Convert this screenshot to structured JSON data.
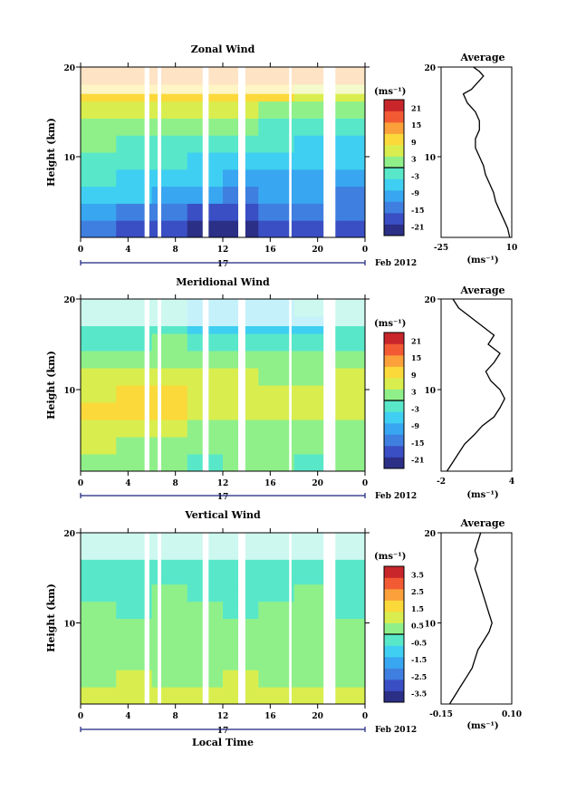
{
  "figure": {
    "xlabel": "Local Time",
    "date_label": "17",
    "month_label": "Feb 2012"
  },
  "chart_data": [
    {
      "type": "heatmap",
      "title": "Zonal Wind",
      "ylabel": "Height (km)",
      "xlim": [
        0,
        24
      ],
      "ylim": [
        1,
        20
      ],
      "xticks": [
        "0",
        "4",
        "8",
        "12",
        "16",
        "20",
        "0"
      ],
      "yticks": [
        "20",
        "10"
      ],
      "colorbar": {
        "unit": "(ms⁻¹)",
        "min": -24,
        "max": 24,
        "ticks": [
          "21",
          "15",
          "9",
          "3",
          "-3",
          "-9",
          "-15",
          "-21"
        ]
      },
      "average": {
        "title": "Average",
        "xlabel": "(ms⁻¹)",
        "xticks": [
          "-25",
          "10"
        ],
        "xlim": [
          -25,
          10
        ],
        "yticks": [
          "20",
          "10"
        ],
        "profile": [
          [
            1,
            9
          ],
          [
            2,
            8
          ],
          [
            3,
            6
          ],
          [
            4,
            4
          ],
          [
            5,
            2
          ],
          [
            6,
            1
          ],
          [
            7,
            -1
          ],
          [
            8,
            -3
          ],
          [
            9,
            -4
          ],
          [
            10,
            -6
          ],
          [
            11,
            -8
          ],
          [
            12,
            -8
          ],
          [
            13,
            -6
          ],
          [
            14,
            -6
          ],
          [
            15,
            -8
          ],
          [
            16,
            -12
          ],
          [
            17,
            -14
          ],
          [
            17.5,
            -10
          ],
          [
            18,
            -8
          ],
          [
            19,
            -4
          ],
          [
            19.5,
            -6
          ],
          [
            20,
            -9
          ]
        ]
      },
      "data_gaps": [
        [
          5.4,
          5.8
        ],
        [
          6.5,
          6.8
        ],
        [
          10.3,
          10.8
        ],
        [
          13.3,
          13.9
        ],
        [
          17.6,
          17.8
        ],
        [
          20.5,
          21.5
        ]
      ],
      "grid": [
        [
          -16,
          -18,
          -20,
          -22,
          -21,
          -19,
          -17,
          -18
        ],
        [
          -12,
          -14,
          -16,
          -18,
          -18,
          -16,
          -15,
          -16
        ],
        [
          -6,
          -8,
          -10,
          -12,
          -13,
          -12,
          -12,
          -13
        ],
        [
          -4,
          -6,
          -7,
          -8,
          -9,
          -9,
          -10,
          -11
        ],
        [
          -2,
          -3,
          -4,
          -5,
          -6,
          -7,
          -7,
          -8
        ],
        [
          0,
          -1,
          -2,
          -3,
          -3,
          -4,
          -5,
          -5
        ],
        [
          3,
          2,
          1,
          0,
          0,
          -1,
          -2,
          -2
        ],
        [
          7,
          6,
          5,
          5,
          4,
          3,
          2,
          2
        ],
        [
          11,
          10,
          10,
          9,
          9,
          8,
          7,
          7
        ],
        [
          13,
          12,
          13,
          14,
          15,
          14,
          13,
          13
        ]
      ]
    },
    {
      "type": "heatmap",
      "title": "Meridional Wind",
      "ylabel": "Height (km)",
      "xlim": [
        0,
        24
      ],
      "ylim": [
        1,
        20
      ],
      "xticks": [
        "0",
        "4",
        "8",
        "12",
        "16",
        "20",
        "0"
      ],
      "yticks": [
        "20",
        "10"
      ],
      "colorbar": {
        "unit": "(ms⁻¹)",
        "min": -24,
        "max": 24,
        "ticks": [
          "21",
          "15",
          "9",
          "3",
          "-3",
          "-9",
          "-15",
          "-21"
        ]
      },
      "average": {
        "title": "Average",
        "xlabel": "(ms⁻¹)",
        "xticks": [
          "-2",
          "4"
        ],
        "xlim": [
          -2,
          4
        ],
        "yticks": [
          "20",
          "10"
        ],
        "profile": [
          [
            1,
            -1.5
          ],
          [
            2,
            -1
          ],
          [
            3,
            -0.5
          ],
          [
            4,
            0
          ],
          [
            5,
            0.8
          ],
          [
            6,
            1.5
          ],
          [
            7,
            2.5
          ],
          [
            8,
            3
          ],
          [
            9,
            3.4
          ],
          [
            10,
            3
          ],
          [
            11,
            2.2
          ],
          [
            12,
            1.8
          ],
          [
            13,
            2.5
          ],
          [
            14,
            3
          ],
          [
            15,
            2
          ],
          [
            16,
            2.5
          ],
          [
            17,
            1.5
          ],
          [
            18,
            0.5
          ],
          [
            19,
            -0.5
          ],
          [
            20,
            -1
          ]
        ]
      },
      "data_gaps": [
        [
          5.4,
          5.8
        ],
        [
          6.5,
          6.8
        ],
        [
          10.3,
          10.8
        ],
        [
          13.3,
          13.9
        ],
        [
          17.6,
          17.8
        ],
        [
          20.5,
          21.5
        ]
      ],
      "grid": [
        [
          2,
          1,
          0,
          -1,
          0,
          1,
          -1,
          0
        ],
        [
          4,
          3,
          2,
          1,
          1,
          2,
          0,
          1
        ],
        [
          6,
          5,
          4,
          3,
          3,
          3,
          2,
          3
        ],
        [
          8,
          9,
          8,
          6,
          5,
          4,
          4,
          5
        ],
        [
          7,
          8,
          9,
          7,
          6,
          5,
          5,
          6
        ],
        [
          4,
          5,
          6,
          5,
          4,
          3,
          3,
          4
        ],
        [
          1,
          2,
          3,
          3,
          1,
          0,
          0,
          1
        ],
        [
          -2,
          -1,
          0,
          -1,
          -3,
          -4,
          -3,
          -2
        ],
        [
          -4,
          -3,
          -4,
          -6,
          -7,
          -6,
          -5,
          -4
        ],
        [
          -1,
          -2,
          -3,
          -5,
          -6,
          -5,
          -4,
          -3
        ]
      ]
    },
    {
      "type": "heatmap",
      "title": "Vertical Wind",
      "ylabel": "Height (km)",
      "xlim": [
        0,
        24
      ],
      "ylim": [
        1,
        20
      ],
      "xticks": [
        "0",
        "4",
        "8",
        "12",
        "16",
        "20",
        "0"
      ],
      "yticks": [
        "20",
        "10"
      ],
      "colorbar": {
        "unit": "(ms⁻¹)",
        "min": -4,
        "max": 4,
        "ticks": [
          "3.5",
          "2.5",
          "1.5",
          "0.5",
          "-0.5",
          "-1.5",
          "-2.5",
          "-3.5"
        ]
      },
      "average": {
        "title": "Average",
        "xlabel": "(ms⁻¹)",
        "xticks": [
          "-0.15",
          "0.10"
        ],
        "xlim": [
          -0.15,
          0.1
        ],
        "yticks": [
          "20",
          "10"
        ],
        "profile": [
          [
            1,
            -0.12
          ],
          [
            2,
            -0.1
          ],
          [
            3,
            -0.08
          ],
          [
            4,
            -0.06
          ],
          [
            5,
            -0.04
          ],
          [
            6,
            -0.03
          ],
          [
            7,
            -0.02
          ],
          [
            8,
            0
          ],
          [
            9,
            0.02
          ],
          [
            10,
            0.03
          ],
          [
            11,
            0.02
          ],
          [
            12,
            0.01
          ],
          [
            13,
            0
          ],
          [
            14,
            -0.01
          ],
          [
            15,
            -0.02
          ],
          [
            16,
            -0.03
          ],
          [
            17,
            -0.02
          ],
          [
            18,
            -0.03
          ],
          [
            19,
            -0.02
          ],
          [
            20,
            -0.01
          ]
        ]
      },
      "data_gaps": [
        [
          5.4,
          5.8
        ],
        [
          6.5,
          6.8
        ],
        [
          10.3,
          10.8
        ],
        [
          13.3,
          13.9
        ],
        [
          17.6,
          17.8
        ],
        [
          20.5,
          21.5
        ]
      ],
      "grid": [
        [
          0.8,
          0.9,
          0.7,
          0.8,
          0.9,
          0.7,
          0.8,
          0.9
        ],
        [
          0.6,
          0.7,
          0.6,
          0.5,
          0.7,
          0.6,
          0.5,
          0.6
        ],
        [
          0.4,
          0.5,
          0.6,
          0.4,
          0.5,
          0.6,
          0.4,
          0.5
        ],
        [
          0.3,
          0.2,
          0.4,
          0.3,
          0.2,
          0.4,
          0.3,
          0.2
        ],
        [
          0.1,
          0.2,
          0.0,
          0.1,
          0.2,
          0.0,
          0.1,
          0.2
        ],
        [
          0.0,
          -0.1,
          0.1,
          0.0,
          -0.1,
          0.1,
          0.0,
          -0.1
        ],
        [
          -0.1,
          -0.2,
          0.0,
          -0.1,
          -0.2,
          -0.1,
          0.0,
          -0.1
        ],
        [
          -0.2,
          -0.1,
          -0.3,
          -0.2,
          -0.1,
          -0.3,
          -0.2,
          -0.1
        ],
        [
          -0.3,
          -0.2,
          -0.3,
          -0.4,
          -0.2,
          -0.3,
          -0.2,
          -0.3
        ],
        [
          -0.2,
          -0.3,
          -0.2,
          -0.3,
          -0.4,
          -0.3,
          -0.2,
          -0.3
        ]
      ]
    }
  ]
}
